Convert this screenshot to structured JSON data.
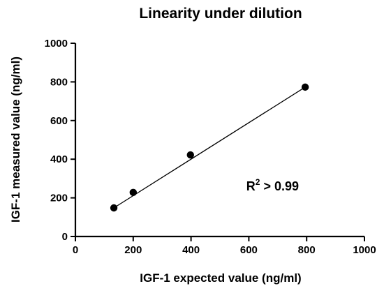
{
  "chart_data": {
    "type": "scatter",
    "title": "Linearity under dilution",
    "xlabel": "IGF-1 expected value (ng/ml)",
    "ylabel": "IGF-1 measured value (ng/ml)",
    "xlim": [
      0,
      1000
    ],
    "ylim": [
      0,
      1000
    ],
    "xticks": [
      0,
      200,
      400,
      600,
      800,
      1000
    ],
    "yticks": [
      0,
      200,
      400,
      600,
      800,
      1000
    ],
    "x": [
      133,
      200,
      398,
      795
    ],
    "y": [
      148,
      228,
      422,
      773
    ],
    "fit_line": {
      "x": [
        133,
        795
      ],
      "y": [
        148,
        773
      ]
    },
    "grid": false,
    "legend": "none",
    "annotation": {
      "main": "R",
      "superscript": "2",
      "suffix": " > 0.99",
      "at": [
        700,
        260
      ]
    },
    "colors": {
      "points": "#000000",
      "line": "#000000",
      "axes": "#000000"
    }
  }
}
